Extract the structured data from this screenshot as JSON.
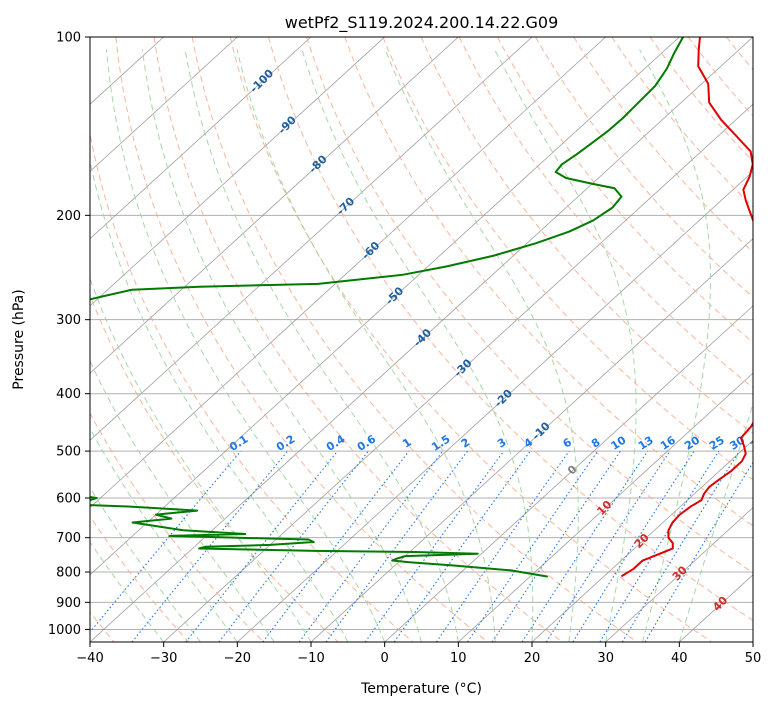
{
  "chart_data": {
    "type": "line",
    "subtype": "skew-t log-p diagram",
    "title": "wetPf2_S119.2024.200.14.22.G09",
    "xlabel": "Temperature (°C)",
    "ylabel": "Pressure (hPa)",
    "xlim": [
      -40,
      50
    ],
    "ylim": [
      1050,
      100
    ],
    "y_scale": "log",
    "grid": true,
    "x_ticks": [
      "−40",
      "−30",
      "−20",
      "−10",
      "0",
      "10",
      "20",
      "30",
      "40",
      "50"
    ],
    "x_tick_values": [
      -40,
      -30,
      -20,
      -10,
      0,
      10,
      20,
      30,
      40,
      50
    ],
    "y_ticks": [
      "100",
      "200",
      "300",
      "400",
      "500",
      "600",
      "700",
      "800",
      "900",
      "1000"
    ],
    "y_tick_values": [
      100,
      200,
      300,
      400,
      500,
      600,
      700,
      800,
      900,
      1000
    ],
    "colors": {
      "temperature": "#e00000",
      "dewpoint": "#007a00",
      "dry_adiabat": "#f4a582",
      "moist_adiabat": "#9fd39f",
      "mixing_ratio": "#1f77e6",
      "isotherm": "#808080",
      "isotherm_label_neg": "#1f5fa0",
      "isotherm_label_pos": "#d62728",
      "isotherm_label_zero": "#7f7f7f"
    },
    "isotherm_labels": [
      {
        "text": "-100",
        "t": -100,
        "p": 118
      },
      {
        "text": "-90",
        "t": -90,
        "p": 140
      },
      {
        "text": "-80",
        "t": -80,
        "p": 163
      },
      {
        "text": "-70",
        "t": -70,
        "p": 192
      },
      {
        "text": "-60",
        "t": -60,
        "p": 228
      },
      {
        "text": "-50",
        "t": -50,
        "p": 272
      },
      {
        "text": "-40",
        "t": -40,
        "p": 320
      },
      {
        "text": "-30",
        "t": -30,
        "p": 360
      },
      {
        "text": "-20",
        "t": -20,
        "p": 405
      },
      {
        "text": "-10",
        "t": -10,
        "p": 460
      },
      {
        "text": "0",
        "t": 0,
        "p": 535
      },
      {
        "text": "10",
        "t": 10,
        "p": 620
      },
      {
        "text": "20",
        "t": 20,
        "p": 705
      },
      {
        "text": "30",
        "t": 30,
        "p": 800
      },
      {
        "text": "40",
        "t": 40,
        "p": 900
      }
    ],
    "mixing_ratio_labels": [
      "0.1",
      "0.2",
      "0.4",
      "0.6",
      "1",
      "1.5",
      "2",
      "3",
      "4",
      "6",
      "8",
      "10",
      "13",
      "16",
      "20",
      "25",
      "30",
      "36"
    ],
    "mixing_ratio_values": [
      0.1,
      0.2,
      0.4,
      0.6,
      1,
      1.5,
      2,
      3,
      4,
      6,
      8,
      10,
      13,
      16,
      20,
      25,
      30,
      36
    ],
    "mixing_ratio_label_p": 500,
    "series": [
      {
        "key": "temperature",
        "points": [
          [
            22.4,
            812
          ],
          [
            22.9,
            790
          ],
          [
            22.9,
            765
          ],
          [
            23.9,
            750
          ],
          [
            25.2,
            730
          ],
          [
            24.4,
            715
          ],
          [
            23.0,
            700
          ],
          [
            21.9,
            680
          ],
          [
            21.3,
            660
          ],
          [
            21.1,
            640
          ],
          [
            21.4,
            620
          ],
          [
            21.9,
            605
          ],
          [
            21.3,
            590
          ],
          [
            21.0,
            575
          ],
          [
            21.2,
            560
          ],
          [
            21.6,
            540
          ],
          [
            21.6,
            520
          ],
          [
            21.0,
            505
          ],
          [
            19.6,
            490
          ],
          [
            18.0,
            475
          ],
          [
            17.7,
            455
          ],
          [
            16.9,
            435
          ],
          [
            15.6,
            410
          ],
          [
            15.5,
            390
          ],
          [
            15.4,
            370
          ],
          [
            15.4,
            352
          ],
          [
            12.8,
            330
          ],
          [
            9.3,
            305
          ],
          [
            5.4,
            280
          ],
          [
            0.2,
            260
          ],
          [
            -4.3,
            240
          ],
          [
            -8.5,
            222
          ],
          [
            -12.2,
            206
          ],
          [
            -16.6,
            189
          ],
          [
            -18.6,
            181
          ],
          [
            -19.7,
            172
          ],
          [
            -21.1,
            164
          ],
          [
            -23.3,
            156
          ],
          [
            -27.5,
            147
          ],
          [
            -32.0,
            138
          ],
          [
            -36.2,
            129
          ],
          [
            -39.1,
            120
          ],
          [
            -43.1,
            112
          ],
          [
            -45.5,
            105
          ],
          [
            -47.2,
            100
          ]
        ]
      },
      {
        "key": "dewpoint",
        "points": [
          [
            12.3,
            814
          ],
          [
            6.5,
            795
          ],
          [
            -2.0,
            780
          ],
          [
            -8.5,
            770
          ],
          [
            -11.1,
            765
          ],
          [
            -10.8,
            760
          ],
          [
            -10.0,
            752
          ],
          [
            -0.5,
            745
          ],
          [
            -9.3,
            740
          ],
          [
            -23.0,
            737
          ],
          [
            -39.1,
            730
          ],
          [
            -38.5,
            725
          ],
          [
            -30.0,
            720
          ],
          [
            -24.5,
            712
          ],
          [
            -25.6,
            705
          ],
          [
            -36.0,
            700
          ],
          [
            -45.0,
            695
          ],
          [
            -35.0,
            690
          ],
          [
            -44.0,
            680
          ],
          [
            -48.0,
            670
          ],
          [
            -52.0,
            660
          ],
          [
            -47.3,
            650
          ],
          [
            -50.0,
            640
          ],
          [
            -45.0,
            630
          ],
          [
            -55.0,
            620
          ],
          [
            -63.5,
            615
          ],
          [
            -61.5,
            608
          ],
          [
            -60.5,
            600
          ],
          [
            -65.0,
            590
          ],
          [
            -69.0,
            580
          ],
          [
            -77.0,
            575
          ],
          [
            -79.5,
            570
          ],
          [
            -76.0,
            565
          ],
          [
            -71.5,
            560
          ],
          [
            -79.0,
            555
          ],
          [
            -88.5,
            550
          ],
          [
            -91.5,
            545
          ],
          [
            -90.5,
            530
          ],
          [
            -92.0,
            520
          ],
          [
            -98.0,
            510
          ],
          [
            -95.0,
            500
          ],
          [
            -93.5,
            490
          ],
          [
            -100.5,
            480
          ],
          [
            -101.7,
            470
          ],
          [
            -109.0,
            455
          ],
          [
            -104.0,
            440
          ],
          [
            -101.4,
            432
          ],
          [
            -110.5,
            420
          ],
          [
            -108.0,
            410
          ],
          [
            -103.6,
            398
          ],
          [
            -104.2,
            385
          ],
          [
            -109.3,
            370
          ],
          [
            -111.5,
            360
          ],
          [
            -109.0,
            345
          ],
          [
            -106.5,
            333
          ],
          [
            -104.0,
            318
          ],
          [
            -100.8,
            308
          ],
          [
            -97.0,
            295
          ],
          [
            -93.2,
            283
          ],
          [
            -89.7,
            274
          ],
          [
            -86.7,
            267
          ],
          [
            -78.0,
            264
          ],
          [
            -62.3,
            261
          ],
          [
            -52.2,
            252
          ],
          [
            -47.5,
            244
          ],
          [
            -42.7,
            234
          ],
          [
            -38.8,
            223
          ],
          [
            -36.0,
            213
          ],
          [
            -34.4,
            204
          ],
          [
            -33.7,
            194
          ],
          [
            -34.1,
            186
          ],
          [
            -36.3,
            180
          ],
          [
            -39.9,
            177
          ],
          [
            -44.4,
            173
          ],
          [
            -46.7,
            169
          ],
          [
            -47.0,
            164
          ],
          [
            -46.5,
            158
          ],
          [
            -46.1,
            151
          ],
          [
            -45.7,
            144
          ],
          [
            -45.6,
            137
          ],
          [
            -45.8,
            129
          ],
          [
            -46.0,
            121
          ],
          [
            -47.0,
            113
          ],
          [
            -48.2,
            107
          ],
          [
            -49.5,
            100
          ]
        ]
      }
    ]
  }
}
